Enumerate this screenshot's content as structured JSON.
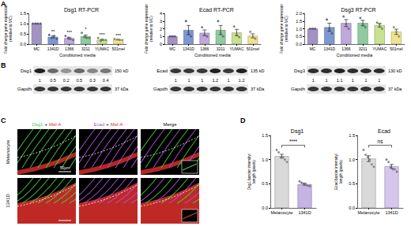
{
  "panel_labels": [
    "A",
    "B",
    "C",
    "D"
  ],
  "chart_data": [
    {
      "type": "bar",
      "title": "Dsg1 RT-PCR",
      "x_label": "Conditioned media",
      "y_label": "Fold change gene expression\n(relative to MC)",
      "categories": [
        "MC",
        "1341D",
        "1366",
        "3211",
        "YUMAC",
        "501mel"
      ],
      "values": [
        1.0,
        0.35,
        0.29,
        0.38,
        0.21,
        0.22
      ],
      "errors": [
        0,
        0.05,
        0.05,
        0.06,
        0.03,
        0.01
      ],
      "points": [
        [
          1,
          1,
          1,
          1
        ],
        [
          0.45,
          0.3,
          0.4,
          0.25
        ],
        [
          0.4,
          0.3,
          0.25,
          0.2
        ],
        [
          0.55,
          0.35,
          0.3,
          0.3
        ],
        [
          0.3,
          0.15,
          0.2,
          0.2
        ],
        [
          0.25,
          0.22,
          0.2,
          0.2
        ]
      ],
      "colors": [
        "#a293c4",
        "#7d97d1",
        "#bea8dc",
        "#8fcb9f",
        "#c9e28f",
        "#f1e290"
      ],
      "annotations": [
        null,
        "**",
        "***",
        "*",
        "***",
        "***"
      ],
      "ylim": [
        0,
        1.5
      ],
      "yticks": [
        {
          "value": 0,
          "label": "0.0"
        },
        0.5,
        {
          "value": 1,
          "label": "1.0"
        },
        1.5
      ],
      "grid": false
    },
    {
      "type": "bar",
      "title": "Ecad RT-PCR",
      "x_label": "Conditioned media",
      "y_label": "Fold change gene expression\n(relative to MC)",
      "categories": [
        "MC",
        "1341D",
        "1366",
        "3211",
        "YUMAC",
        "501mel"
      ],
      "values": [
        1.0,
        1.83,
        1.47,
        1.83,
        1.5,
        1.07
      ],
      "errors": [
        0,
        0.6,
        0.37,
        0.6,
        0.42,
        0.27
      ],
      "points": [
        [
          1,
          1,
          1
        ],
        [
          3.0,
          1.5,
          1.0
        ],
        [
          2.2,
          1.2,
          1.0
        ],
        [
          3.0,
          1.5,
          1.0
        ],
        [
          2.3,
          1.3,
          0.9
        ],
        [
          1.6,
          0.9,
          0.7
        ]
      ],
      "colors": [
        "#a293c4",
        "#7d97d1",
        "#bea8dc",
        "#8fcb9f",
        "#c9e28f",
        "#f1e290"
      ],
      "ylim": [
        0,
        4
      ],
      "yticks": [
        0,
        1,
        2,
        3,
        4
      ],
      "grid": false
    },
    {
      "type": "bar",
      "title": "Dsg3 RT-PCR",
      "x_label": "Conditioned media",
      "y_label": "Fold change gene expression\n(relative to MC)",
      "categories": [
        "MC",
        "1341D",
        "1366",
        "3211",
        "YUMAC",
        "501mel"
      ],
      "values": [
        1.0,
        1.1,
        1.37,
        1.37,
        1.23,
        0.8
      ],
      "errors": [
        0,
        0.26,
        0.23,
        0.18,
        0.12,
        0.17
      ],
      "points": [
        [
          1,
          1,
          1
        ],
        [
          1.6,
          1.0,
          0.7
        ],
        [
          1.8,
          1.3,
          1.0
        ],
        [
          1.7,
          1.3,
          1.1
        ],
        [
          1.4,
          1.3,
          1.0
        ],
        [
          1.1,
          0.8,
          0.5
        ]
      ],
      "colors": [
        "#a293c4",
        "#7d97d1",
        "#bea8dc",
        "#8fcb9f",
        "#c9e28f",
        "#f1e290"
      ],
      "ylim": [
        0,
        2
      ],
      "yticks": [
        {
          "value": 0,
          "label": "0.0"
        },
        0.5,
        {
          "value": 1,
          "label": "1.0"
        },
        1.5,
        {
          "value": 2,
          "label": "2.0"
        }
      ],
      "grid": false
    },
    {
      "type": "bar",
      "title": "Dsg1",
      "y_label": "Dsg1 border intensity/\nlength (pixels)",
      "categories": [
        "Melanocyte",
        "1341D"
      ],
      "values": [
        1.07,
        0.49
      ],
      "errors": [
        0.04,
        0.02
      ],
      "points": [
        [
          1.2,
          1.15,
          1.05,
          1.05,
          1.0,
          0.95
        ],
        [
          0.55,
          0.52,
          0.5,
          0.48,
          0.46,
          0.45
        ]
      ],
      "colors": [
        "#d9d9d9",
        "#c4b4e6"
      ],
      "annotations": [
        {
          "between": [
            "Melanocyte",
            "1341D"
          ],
          "text": "****"
        }
      ],
      "ylim": [
        0,
        1.5
      ],
      "yticks": [
        {
          "value": 0,
          "label": "0.0"
        },
        0.5,
        {
          "value": 1,
          "label": "1.0"
        },
        1.5
      ],
      "grid": false
    },
    {
      "type": "bar",
      "title": "Ecad",
      "y_label": "Ecad border intensity/\nlength (pixels)",
      "categories": [
        "Melanocyte",
        "1341D"
      ],
      "values": [
        1.02,
        0.86
      ],
      "errors": [
        0.06,
        0.04
      ],
      "points": [
        [
          1.2,
          1.1,
          1.05,
          1.0,
          0.9,
          0.85
        ],
        [
          1.0,
          0.95,
          0.85,
          0.8,
          0.8,
          0.75
        ]
      ],
      "colors": [
        "#d9d9d9",
        "#d6c6ec"
      ],
      "annotations": [
        {
          "between": [
            "Melanocyte",
            "1341D"
          ],
          "text": "ns"
        }
      ],
      "ylim": [
        0,
        1.5
      ],
      "yticks": [
        {
          "value": 0,
          "label": "0.0"
        },
        0.5,
        {
          "value": 1,
          "label": "1.0"
        },
        1.5
      ],
      "grid": false
    }
  ],
  "blots": [
    {
      "protein": "Dsg1",
      "size": "150 kD",
      "ratios": [
        1,
        0.5,
        0.2,
        0.5,
        0.3,
        0.4
      ],
      "loading": "Gapdh",
      "loading_size": "37 kDa"
    },
    {
      "protein": "Ecad",
      "size": "135 kD",
      "ratios": [
        1,
        1,
        1,
        1.2,
        1,
        1.2
      ],
      "loading": "Gapdh",
      "loading_size": "37 kDa"
    },
    {
      "protein": "Dsg3",
      "size": "130 kD",
      "ratios": [
        1,
        1,
        1.1,
        1,
        1,
        1
      ],
      "loading": "Gapdh",
      "loading_size": "37 kDa"
    }
  ],
  "images": {
    "columns": [
      {
        "parts": [
          {
            "text": "Dsg1",
            "color": "#3fcf3f"
          },
          {
            "text": "+",
            "color": "#000000"
          },
          {
            "text": "Mel-A",
            "color": "#e0302c"
          }
        ]
      },
      {
        "parts": [
          {
            "text": "Ecad",
            "color": "#b04fd8"
          },
          {
            "text": "+",
            "color": "#000000"
          },
          {
            "text": "Mel-A",
            "color": "#e0302c"
          }
        ]
      },
      {
        "parts": [
          {
            "text": "Merge",
            "color": "#000000"
          }
        ]
      }
    ],
    "rows": [
      "Melanocyte",
      "1341D"
    ],
    "scale_bar": "50μm"
  }
}
